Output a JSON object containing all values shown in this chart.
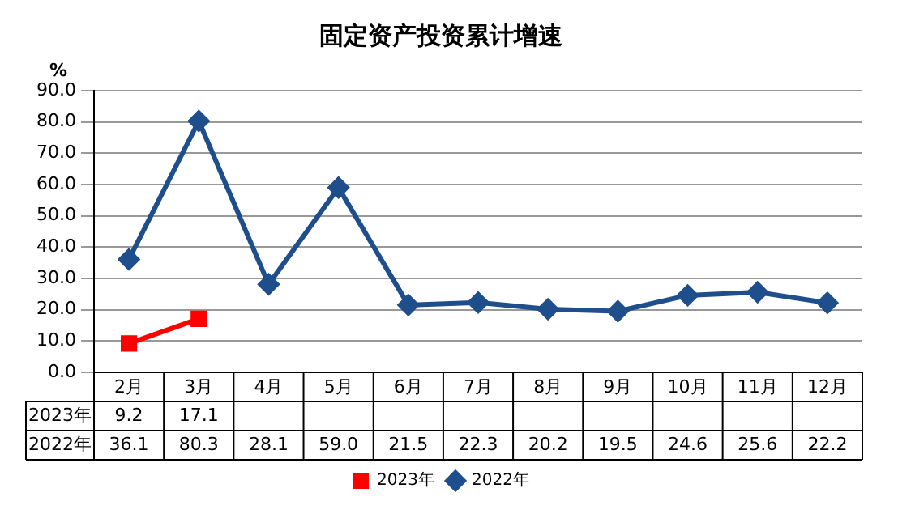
{
  "chart_data": {
    "type": "line",
    "title": "固定资产投资累计增速",
    "ylabel": "%",
    "categories": [
      "2月",
      "3月",
      "4月",
      "5月",
      "6月",
      "7月",
      "8月",
      "9月",
      "10月",
      "11月",
      "12月"
    ],
    "series": [
      {
        "name": "2023年",
        "color": "#ff0000",
        "marker": "square",
        "values": [
          9.2,
          17.1,
          null,
          null,
          null,
          null,
          null,
          null,
          null,
          null,
          null
        ],
        "value_labels": [
          "9.2",
          "17.1",
          null,
          null,
          null,
          null,
          null,
          null,
          null,
          null,
          null
        ]
      },
      {
        "name": "2022年",
        "color": "#1f4e8c",
        "marker": "diamond",
        "values": [
          36.1,
          80.3,
          28.1,
          59.0,
          21.5,
          22.3,
          20.2,
          19.5,
          24.6,
          25.6,
          22.2
        ],
        "value_labels": [
          "36.1",
          "80.3",
          "28.1",
          "59.0",
          "21.5",
          "22.3",
          "20.2",
          "19.5",
          "24.6",
          "25.6",
          "22.2"
        ]
      }
    ],
    "ylim": [
      0,
      90
    ],
    "yticks": [
      {
        "value": 0,
        "label": "0.0"
      },
      {
        "value": 10,
        "label": "10.0"
      },
      {
        "value": 20,
        "label": "20.0"
      },
      {
        "value": 30,
        "label": "30.0"
      },
      {
        "value": 40,
        "label": "40.0"
      },
      {
        "value": 50,
        "label": "50.0"
      },
      {
        "value": 60,
        "label": "60.0"
      },
      {
        "value": 70,
        "label": "70.0"
      },
      {
        "value": 80,
        "label": "80.0"
      },
      {
        "value": 90,
        "label": "90.0"
      }
    ],
    "grid": "y",
    "legend": "bottom",
    "line_style": "solid"
  }
}
